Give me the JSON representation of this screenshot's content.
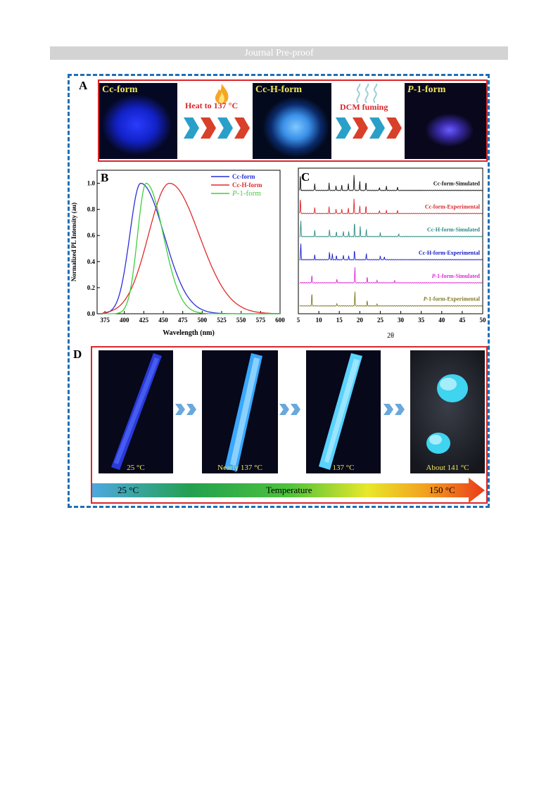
{
  "header": {
    "banner": "Journal Pre-proof"
  },
  "panel_a": {
    "label": "A",
    "photos": [
      {
        "caption": "Cc-form"
      },
      {
        "caption": "Cc-H-form"
      },
      {
        "caption": "P-1-form",
        "italic_prefix": "P",
        "rest": "-1-form"
      }
    ],
    "arrows": [
      {
        "label": "Heat to 137 °C",
        "icon": "flame-icon"
      },
      {
        "label": "DCM fuming",
        "icon": "vapor-icon"
      }
    ]
  },
  "panel_d": {
    "label": "D",
    "photos": [
      {
        "caption": "25 °C"
      },
      {
        "caption": "Nearly 137 °C"
      },
      {
        "caption": "137 °C"
      },
      {
        "caption": "About 141 °C"
      }
    ],
    "temperature_bar": {
      "start": "25 °C",
      "middle": "Temperature",
      "end": "150 °C"
    }
  },
  "chart_data": [
    {
      "panel": "B",
      "type": "line",
      "xlabel": "Wavelength (nm)",
      "ylabel": "Normalized PL Intensity (au)",
      "xlim": [
        365,
        600
      ],
      "ylim": [
        0,
        1.1
      ],
      "xticks": [
        375,
        400,
        425,
        450,
        475,
        500,
        525,
        550,
        575,
        600
      ],
      "yticks": [
        "0.0",
        "0.2",
        "0.4",
        "0.6",
        "0.8",
        "1.0"
      ],
      "legend_position": "top-right",
      "series": [
        {
          "name": "Cc-form",
          "color": "#2a2fd6",
          "peak": 421,
          "sigma_left": 14,
          "sigma_right": 30
        },
        {
          "name": "Cc-H-form",
          "color": "#e02a2a",
          "peak": 458,
          "sigma_left": 27,
          "sigma_right": 38
        },
        {
          "name": "P-1-form",
          "italic_prefix": "P",
          "rest": "-1-form",
          "color": "#3fcf3f",
          "peak": 428,
          "sigma_left": 11,
          "sigma_right": 22
        }
      ]
    },
    {
      "panel": "C",
      "type": "line",
      "xlabel": "2θ",
      "xlim": [
        5,
        50
      ],
      "xticks": [
        5,
        10,
        15,
        20,
        25,
        30,
        35,
        40,
        45,
        50
      ],
      "series": [
        {
          "name": "Cc-form-Simulated",
          "color": "#111111",
          "peaks": [
            [
              5.5,
              1.0
            ],
            [
              9.0,
              0.45
            ],
            [
              12.5,
              0.45
            ],
            [
              14.2,
              0.3
            ],
            [
              15.6,
              0.35
            ],
            [
              17.2,
              0.45
            ],
            [
              18.6,
              1.0
            ],
            [
              20.0,
              0.6
            ],
            [
              21.5,
              0.55
            ],
            [
              24.8,
              0.2
            ],
            [
              26.5,
              0.25
            ],
            [
              29.2,
              0.22
            ]
          ]
        },
        {
          "name": "Cc-form-Experimental",
          "color": "#d9262b",
          "peaks": [
            [
              5.5,
              1.0
            ],
            [
              9.0,
              0.4
            ],
            [
              12.5,
              0.4
            ],
            [
              14.2,
              0.3
            ],
            [
              15.6,
              0.3
            ],
            [
              17.2,
              0.35
            ],
            [
              18.6,
              0.95
            ],
            [
              20.0,
              0.5
            ],
            [
              21.5,
              0.5
            ],
            [
              24.8,
              0.2
            ],
            [
              26.5,
              0.2
            ],
            [
              29.2,
              0.2
            ]
          ]
        },
        {
          "name": "Cc-H-form-Simulated",
          "color": "#2e8b84",
          "peaks": [
            [
              5.6,
              1.0
            ],
            [
              9.0,
              0.4
            ],
            [
              12.6,
              0.45
            ],
            [
              14.3,
              0.3
            ],
            [
              16.0,
              0.35
            ],
            [
              17.3,
              0.3
            ],
            [
              18.7,
              0.9
            ],
            [
              20.1,
              0.6
            ],
            [
              21.6,
              0.45
            ],
            [
              25.0,
              0.25
            ],
            [
              29.5,
              0.2
            ]
          ]
        },
        {
          "name": "Cc-H-form-Experimental",
          "color": "#1a20c8",
          "peaks": [
            [
              5.6,
              1.0
            ],
            [
              9.0,
              0.3
            ],
            [
              12.6,
              0.5
            ],
            [
              13.3,
              0.35
            ],
            [
              14.3,
              0.25
            ],
            [
              16.0,
              0.3
            ],
            [
              17.3,
              0.25
            ],
            [
              18.7,
              0.6
            ],
            [
              21.6,
              0.4
            ],
            [
              25.0,
              0.25
            ],
            [
              26.0,
              0.2
            ]
          ]
        },
        {
          "name": "P-1-form-Simulated",
          "italic_prefix": "P",
          "rest": "-1-form-Simulated",
          "color": "#e02ad6",
          "peaks": [
            [
              8.3,
              0.5
            ],
            [
              14.4,
              0.25
            ],
            [
              18.8,
              1.0
            ],
            [
              21.8,
              0.35
            ],
            [
              24.2,
              0.15
            ],
            [
              28.5,
              0.15
            ]
          ]
        },
        {
          "name": "P-1-form-Experimental",
          "italic_prefix": "P",
          "rest": "-1-form-Experimental",
          "color": "#7d7a1e",
          "peaks": [
            [
              8.3,
              0.8
            ],
            [
              14.4,
              0.15
            ],
            [
              18.8,
              0.9
            ],
            [
              21.8,
              0.3
            ],
            [
              24.2,
              0.1
            ]
          ]
        }
      ]
    }
  ]
}
